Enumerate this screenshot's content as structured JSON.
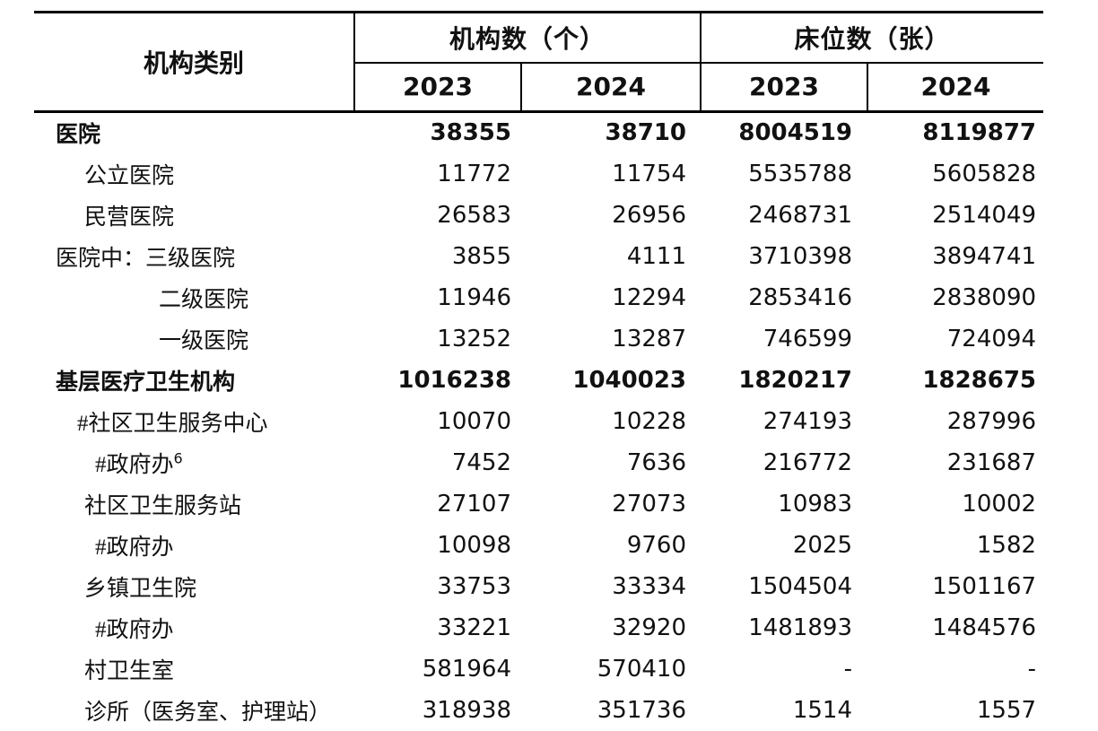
{
  "table": {
    "category_header": "机构类别",
    "group_headers": [
      "机构数（个）",
      "床位数（张）"
    ],
    "year_headers": [
      "2023",
      "2024",
      "2023",
      "2024"
    ],
    "rows": [
      {
        "label": "医院",
        "bold": true,
        "indent": 0,
        "values": [
          "38355",
          "38710",
          "8004519",
          "8119877"
        ]
      },
      {
        "label": "公立医院",
        "bold": false,
        "indent": 2,
        "values": [
          "11772",
          "11754",
          "5535788",
          "5605828"
        ]
      },
      {
        "label": "民营医院",
        "bold": false,
        "indent": 2,
        "values": [
          "26583",
          "26956",
          "2468731",
          "2514049"
        ]
      },
      {
        "label": "医院中：三级医院",
        "bold": false,
        "indent": 0,
        "values": [
          "3855",
          "4111",
          "3710398",
          "3894741"
        ]
      },
      {
        "label": "二级医院",
        "bold": false,
        "indent": 4,
        "values": [
          "11946",
          "12294",
          "2853416",
          "2838090"
        ]
      },
      {
        "label": "一级医院",
        "bold": false,
        "indent": 4,
        "values": [
          "13252",
          "13287",
          "746599",
          "724094"
        ]
      },
      {
        "label": "基层医疗卫生机构",
        "bold": true,
        "indent": 0,
        "values": [
          "1016238",
          "1040023",
          "1820217",
          "1828675"
        ]
      },
      {
        "label": "#社区卫生服务中心",
        "bold": false,
        "indent": 1,
        "values": [
          "10070",
          "10228",
          "274193",
          "287996"
        ]
      },
      {
        "label": "#政府办",
        "sup": "6",
        "bold": false,
        "indent": 3,
        "values": [
          "7452",
          "7636",
          "216772",
          "231687"
        ]
      },
      {
        "label": "社区卫生服务站",
        "bold": false,
        "indent": 2,
        "values": [
          "27107",
          "27073",
          "10983",
          "10002"
        ]
      },
      {
        "label": "#政府办",
        "bold": false,
        "indent": 3,
        "values": [
          "10098",
          "9760",
          "2025",
          "1582"
        ]
      },
      {
        "label": "乡镇卫生院",
        "bold": false,
        "indent": 2,
        "values": [
          "33753",
          "33334",
          "1504504",
          "1501167"
        ]
      },
      {
        "label": "#政府办",
        "bold": false,
        "indent": 3,
        "values": [
          "33221",
          "32920",
          "1481893",
          "1484576"
        ]
      },
      {
        "label": "村卫生室",
        "bold": false,
        "indent": 2,
        "values": [
          "581964",
          "570410",
          "-",
          "-"
        ]
      },
      {
        "label": "诊所（医务室、护理站）",
        "bold": false,
        "indent": 2,
        "values": [
          "318938",
          "351736",
          "1514",
          "1557"
        ]
      }
    ]
  },
  "colors": {
    "text": "#111111",
    "border": "#000000",
    "background": "#ffffff"
  }
}
